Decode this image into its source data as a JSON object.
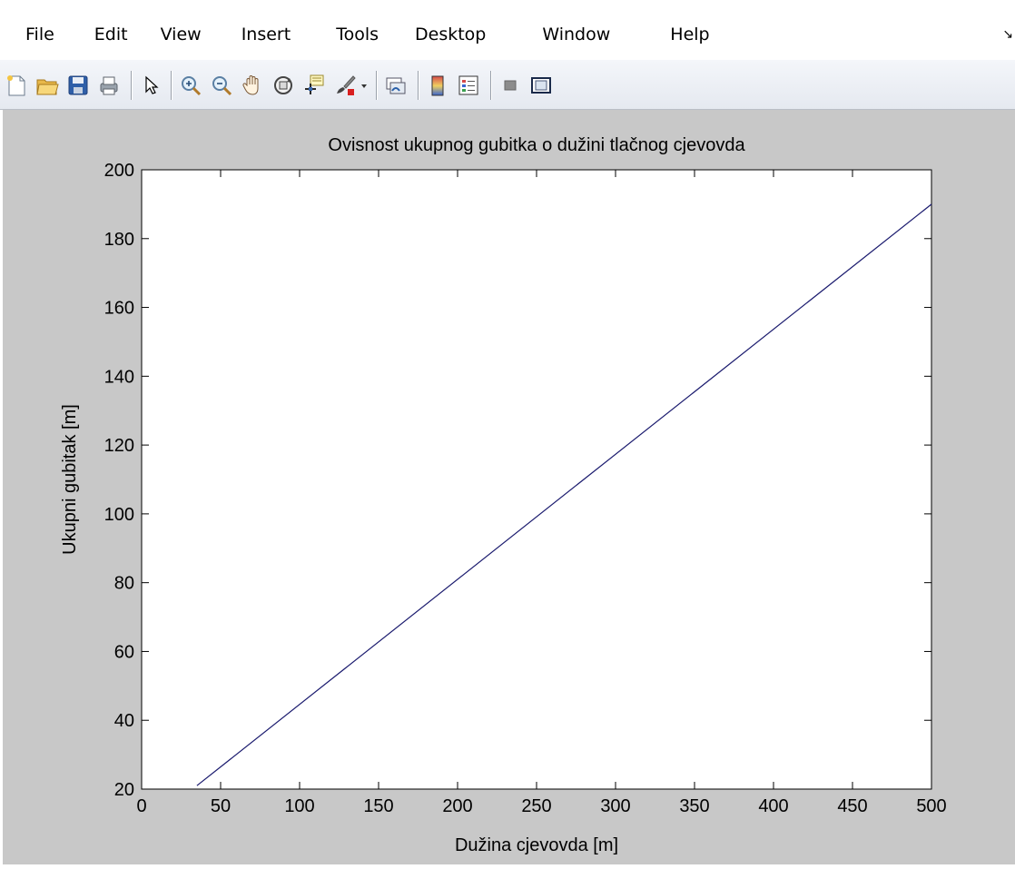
{
  "menu": {
    "items": [
      "File",
      "Edit",
      "View",
      "Insert",
      "Tools",
      "Desktop",
      "Window",
      "Help"
    ]
  },
  "toolbar": {
    "buttons": [
      {
        "name": "new-figure-icon"
      },
      {
        "name": "open-file-icon"
      },
      {
        "name": "save-figure-icon"
      },
      {
        "name": "print-figure-icon"
      },
      {
        "name": "edit-plot-arrow-icon"
      },
      {
        "name": "zoom-in-icon"
      },
      {
        "name": "zoom-out-icon"
      },
      {
        "name": "pan-hand-icon"
      },
      {
        "name": "rotate-3d-icon"
      },
      {
        "name": "data-cursor-icon"
      },
      {
        "name": "brush-icon"
      },
      {
        "name": "brush-dropdown-icon"
      },
      {
        "name": "link-plot-icon"
      },
      {
        "name": "insert-colorbar-icon"
      },
      {
        "name": "insert-legend-icon"
      },
      {
        "name": "hide-plot-tools-icon"
      },
      {
        "name": "show-plot-tools-icon"
      }
    ]
  },
  "chart_data": {
    "type": "line",
    "title": "Ovisnost ukupnog gubitka o dužini tlačnog cjevovda",
    "xlabel": "Dužina cjevovda [m]",
    "ylabel": "Ukupni gubitak [m]",
    "xlim": [
      0,
      500
    ],
    "ylim": [
      20,
      200
    ],
    "xticks": [
      "0",
      "50",
      "100",
      "150",
      "200",
      "250",
      "300",
      "350",
      "400",
      "450",
      "500"
    ],
    "yticks": [
      "20",
      "40",
      "60",
      "80",
      "100",
      "120",
      "140",
      "160",
      "180",
      "200"
    ],
    "grid": false,
    "series": [
      {
        "x": [
          35,
          500
        ],
        "y": [
          21,
          190
        ],
        "color": "#1a1a6e"
      }
    ]
  }
}
